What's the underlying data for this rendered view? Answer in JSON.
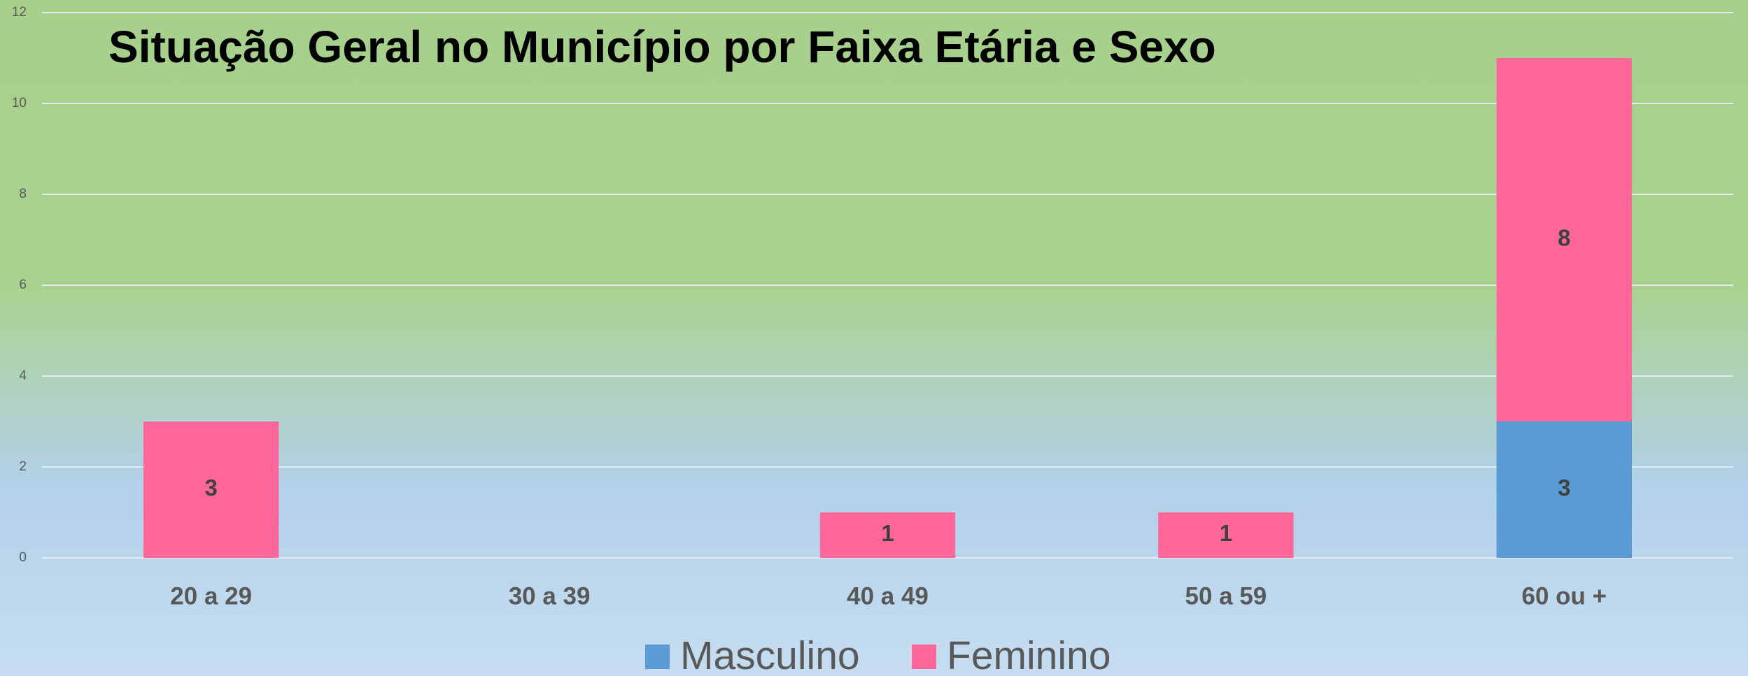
{
  "chart_data": {
    "type": "stacked_bar",
    "title": "Situação Geral no Município por Faixa Etária e Sexo",
    "categories": [
      "20 a 29",
      "30 a 39",
      "40 a 49",
      "50 a 59",
      "60 ou +"
    ],
    "series": [
      {
        "name": "Masculino",
        "color": "#5b9bd5",
        "values": [
          null,
          null,
          null,
          null,
          3
        ]
      },
      {
        "name": "Feminino",
        "color": "#ff6699",
        "values": [
          3,
          null,
          1,
          1,
          8
        ]
      }
    ],
    "ylim": [
      0,
      12
    ],
    "yticks": [
      0,
      2,
      4,
      6,
      8,
      10,
      12
    ],
    "grid": true,
    "legend": "bottom"
  }
}
